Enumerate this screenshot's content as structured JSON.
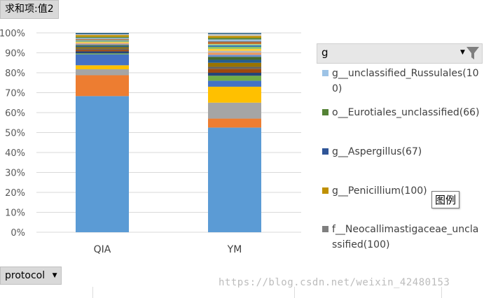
{
  "pivot": {
    "values_field": "求和项:值2",
    "row_field": "protocol",
    "legend_field": "g",
    "tooltip": "图例",
    "watermark": "https://blog.csdn.net/weixin_42480153"
  },
  "legend": {
    "items": [
      {
        "label": "g__unclassified_Russulales(100)",
        "color": "#9dc3e6"
      },
      {
        "label": "o__Eurotiales_unclassified(66)",
        "color": "#548235"
      },
      {
        "label": "g__Aspergillus(67)",
        "color": "#2f5597"
      },
      {
        "label": "g__Penicillium(100)",
        "color": "#bf9000"
      },
      {
        "label": "f__Neocallimastigaceae_unclassified(100)",
        "color": "#7f7f7f"
      }
    ]
  },
  "chart_data": {
    "type": "bar",
    "stacked": true,
    "percent": true,
    "categories": [
      "QIA",
      "YM"
    ],
    "ylim": [
      0,
      100
    ],
    "yticks": [
      "0%",
      "10%",
      "20%",
      "30%",
      "40%",
      "50%",
      "60%",
      "70%",
      "80%",
      "90%",
      "100%"
    ],
    "grid": true,
    "legend_position": "right",
    "series": [
      {
        "color": "#5b9bd5",
        "values": [
          68.5,
          52.5
        ]
      },
      {
        "color": "#ed7d31",
        "values": [
          10.5,
          4.5
        ]
      },
      {
        "color": "#a5a5a5",
        "values": [
          3.0,
          8.0
        ]
      },
      {
        "color": "#ffc000",
        "values": [
          2.0,
          8.0
        ]
      },
      {
        "color": "#4472c4",
        "values": [
          5.5,
          3.0
        ]
      },
      {
        "color": "#70ad47",
        "values": [
          0.5,
          2.5
        ]
      },
      {
        "color": "#264478",
        "values": [
          1.0,
          1.5
        ]
      },
      {
        "color": "#9e480e",
        "values": [
          0.8,
          2.0
        ]
      },
      {
        "color": "#636363",
        "values": [
          0.6,
          1.0
        ]
      },
      {
        "color": "#997300",
        "values": [
          0.7,
          2.0
        ]
      },
      {
        "color": "#255e91",
        "values": [
          0.6,
          1.5
        ]
      },
      {
        "color": "#43682b",
        "values": [
          0.5,
          1.5
        ]
      },
      {
        "color": "#698ed0",
        "values": [
          0.4,
          1.0
        ]
      },
      {
        "color": "#f1975a",
        "values": [
          0.4,
          1.0
        ]
      },
      {
        "color": "#b7b7b7",
        "values": [
          0.3,
          1.0
        ]
      },
      {
        "color": "#ffcd33",
        "values": [
          0.5,
          1.0
        ]
      },
      {
        "color": "#8cc168",
        "values": [
          0.3,
          1.0
        ]
      },
      {
        "color": "#2e75b6",
        "values": [
          0.3,
          0.8
        ]
      },
      {
        "color": "#a9d18e",
        "values": [
          0.3,
          0.7
        ]
      },
      {
        "color": "#c55a11",
        "values": [
          0.3,
          0.8
        ]
      },
      {
        "color": "#7c7c7c",
        "values": [
          0.3,
          0.6
        ]
      },
      {
        "color": "#9dc3e6",
        "values": [
          0.5,
          0.8
        ]
      },
      {
        "color": "#548235",
        "values": [
          0.5,
          0.8
        ]
      },
      {
        "color": "#bf9000",
        "values": [
          0.9,
          1.0
        ]
      },
      {
        "color": "#c9c9c9",
        "values": [
          0.4,
          0.9
        ]
      },
      {
        "color": "#3b6e8f",
        "values": [
          0.7,
          0.6
        ]
      }
    ]
  }
}
